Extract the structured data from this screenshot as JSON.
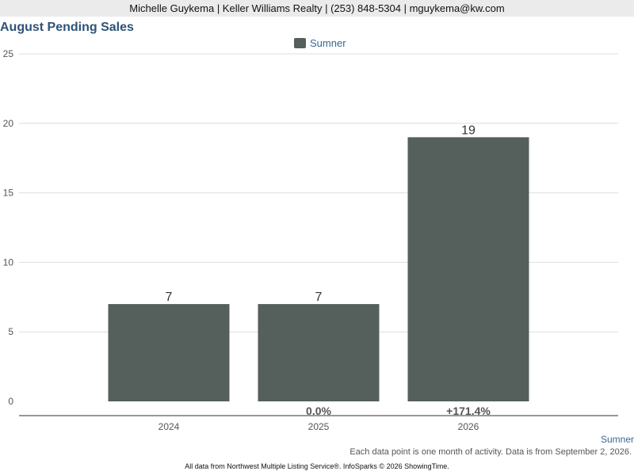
{
  "header": {
    "contact": "Michelle Guykema | Keller Williams Realty | (253) 848-5304 | mguykema@kw.com"
  },
  "chart_data": {
    "type": "bar",
    "title": "August Pending Sales",
    "categories": [
      "2024",
      "2025",
      "2026"
    ],
    "series": [
      {
        "name": "Sumner",
        "values": [
          7,
          7,
          19
        ],
        "color": "#555f5c"
      }
    ],
    "changes": [
      "",
      "0.0%",
      "+171.4%"
    ],
    "yticks": [
      0,
      5,
      10,
      15,
      20,
      25
    ],
    "ylim": [
      0,
      25
    ],
    "grid": true,
    "legend_position": "top-center",
    "colors": {
      "bar": "#555f5c",
      "grid": "#dddddd",
      "axis": "#333333",
      "tick_label": "#555555",
      "value_label": "#333333",
      "change_label": "#555555",
      "title": "#2f5377"
    }
  },
  "area_label": "Sumner",
  "note": "Each data point is one month of activity. Data is from September 2, 2026.",
  "footer": "All data from Northwest Multiple Listing Service®. InfoSparks © 2026 ShowingTime."
}
